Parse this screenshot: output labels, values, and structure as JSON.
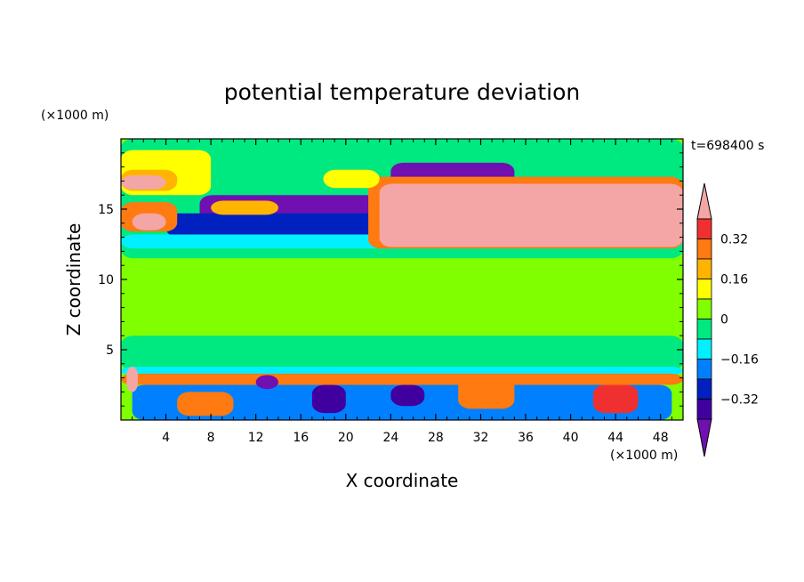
{
  "chart_data": {
    "type": "heatmap",
    "title": "potential temperature deviation",
    "xlabel": "X coordinate",
    "ylabel": "Z coordinate",
    "x_unit": "(×1000 m)",
    "y_unit": "(×1000 m)",
    "time_label": "t=698400 s",
    "xlim": [
      0,
      50
    ],
    "ylim": [
      0,
      20
    ],
    "x_ticks": [
      4,
      8,
      12,
      16,
      20,
      24,
      28,
      32,
      36,
      40,
      44,
      48
    ],
    "y_ticks": [
      5,
      10,
      15
    ],
    "colorbar": {
      "labels": [
        "0.32",
        "0.16",
        "0",
        "−0.16",
        "−0.32"
      ],
      "label_values": [
        0.32,
        0.16,
        0,
        -0.16,
        -0.32
      ],
      "levels": [
        {
          "min": 0.4,
          "max": null,
          "color": "#f4a6a6"
        },
        {
          "min": 0.32,
          "max": 0.4,
          "color": "#f03030"
        },
        {
          "min": 0.24,
          "max": 0.32,
          "color": "#ff7a10"
        },
        {
          "min": 0.16,
          "max": 0.24,
          "color": "#ffb400"
        },
        {
          "min": 0.08,
          "max": 0.16,
          "color": "#ffff00"
        },
        {
          "min": 0,
          "max": 0.08,
          "color": "#80ff00"
        },
        {
          "min": -0.08,
          "max": 0,
          "color": "#00e880"
        },
        {
          "min": -0.16,
          "max": -0.08,
          "color": "#00f0ff"
        },
        {
          "min": -0.24,
          "max": -0.16,
          "color": "#0080ff"
        },
        {
          "min": -0.32,
          "max": -0.24,
          "color": "#0020c0"
        },
        {
          "min": -0.4,
          "max": -0.32,
          "color": "#4000a0"
        },
        {
          "min": null,
          "max": -0.4,
          "color": "#7010b0"
        }
      ]
    },
    "background_color": "#80ff00",
    "regions": [
      {
        "value": -0.05,
        "x": [
          0,
          50
        ],
        "y": [
          11.5,
          20
        ]
      },
      {
        "value": -0.05,
        "x": [
          0,
          50
        ],
        "y": [
          3.5,
          6
        ]
      },
      {
        "value": 0.02,
        "x": [
          5,
          48
        ],
        "y": [
          6.5,
          11
        ]
      },
      {
        "value": 0.1,
        "x": [
          0,
          8
        ],
        "y": [
          16,
          19.2
        ]
      },
      {
        "value": 0.2,
        "x": [
          0,
          5
        ],
        "y": [
          16.3,
          17.8
        ]
      },
      {
        "value": 0.45,
        "x": [
          0,
          4
        ],
        "y": [
          16.4,
          17.4
        ]
      },
      {
        "value": -0.45,
        "x": [
          24,
          35
        ],
        "y": [
          16.5,
          18.3
        ]
      },
      {
        "value": -0.45,
        "x": [
          7,
          32
        ],
        "y": [
          13.6,
          16
        ]
      },
      {
        "value": -0.3,
        "x": [
          4,
          50
        ],
        "y": [
          13,
          14.7
        ]
      },
      {
        "value": -0.1,
        "x": [
          0,
          50
        ],
        "y": [
          12.2,
          13.2
        ]
      },
      {
        "value": 0.3,
        "x": [
          0,
          5
        ],
        "y": [
          13.4,
          15.5
        ]
      },
      {
        "value": 0.45,
        "x": [
          1,
          4
        ],
        "y": [
          13.5,
          14.7
        ]
      },
      {
        "value": 0.3,
        "x": [
          22,
          50
        ],
        "y": [
          12.2,
          17.3
        ]
      },
      {
        "value": 0.45,
        "x": [
          23,
          50
        ],
        "y": [
          12.3,
          16.8
        ]
      },
      {
        "value": 0.12,
        "x": [
          18,
          23
        ],
        "y": [
          16.5,
          17.8
        ]
      },
      {
        "value": 0.2,
        "x": [
          8,
          14
        ],
        "y": [
          14.6,
          15.6
        ]
      },
      {
        "value": -0.1,
        "x": [
          0,
          50
        ],
        "y": [
          3.2,
          3.8
        ]
      },
      {
        "value": 0.3,
        "x": [
          0,
          50
        ],
        "y": [
          2.5,
          3.3
        ]
      },
      {
        "value": -0.2,
        "x": [
          1,
          49
        ],
        "y": [
          0,
          2.5
        ]
      },
      {
        "value": 0.3,
        "x": [
          30,
          35
        ],
        "y": [
          0.8,
          3.2
        ]
      },
      {
        "value": 0.35,
        "x": [
          42,
          46
        ],
        "y": [
          0.5,
          2.5
        ]
      },
      {
        "value": -0.45,
        "x": [
          12,
          14
        ],
        "y": [
          2.2,
          3.2
        ]
      },
      {
        "value": 0.45,
        "x": [
          0.5,
          1.5
        ],
        "y": [
          2,
          3.8
        ]
      },
      {
        "value": -0.35,
        "x": [
          17,
          20
        ],
        "y": [
          0.5,
          2.5
        ]
      },
      {
        "value": 0.25,
        "x": [
          5,
          10
        ],
        "y": [
          0.3,
          2
        ]
      },
      {
        "value": -0.35,
        "x": [
          24,
          27
        ],
        "y": [
          1,
          2.5
        ]
      }
    ]
  }
}
